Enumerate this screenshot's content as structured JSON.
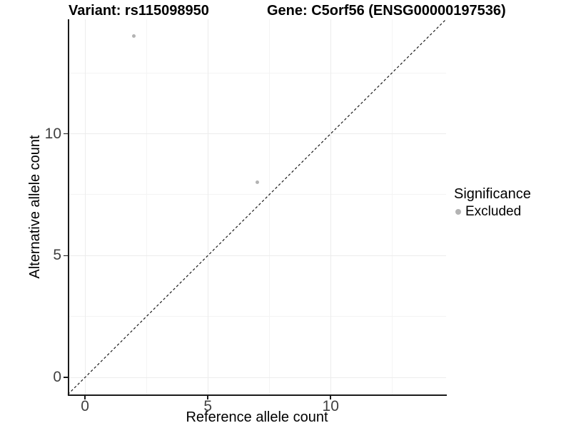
{
  "titles": {
    "variant": "Variant: rs115098950",
    "gene": "Gene: C5orf56 (ENSG00000197536)"
  },
  "legend": {
    "title": "Significance",
    "items": [
      {
        "label": "Excluded",
        "color": "#b3b3b3"
      }
    ]
  },
  "colors": {
    "background": "#ffffff",
    "grid_major": "#ececec",
    "grid_minor": "#f4f4f4",
    "axis_line": "#1a1a1a",
    "tick_text": "#404040",
    "title_text": "#000000",
    "point": "#b3b3b3",
    "reference_line": "#1a1a1a"
  },
  "chart_data": {
    "type": "scatter",
    "title_left": "Variant: rs115098950",
    "title_right": "Gene: C5orf56 (ENSG00000197536)",
    "xlabel": "Reference allele count",
    "ylabel": "Alternative allele count",
    "xlim": [
      -0.7,
      14.7
    ],
    "ylim": [
      -0.7,
      14.7
    ],
    "x_major_ticks": [
      0,
      5,
      10
    ],
    "y_major_ticks": [
      0,
      5,
      10
    ],
    "x_minor_ticks": [
      2.5,
      7.5,
      12.5
    ],
    "y_minor_ticks": [
      2.5,
      7.5,
      12.5
    ],
    "grid": "major and minor gridlines, white panel",
    "legend_position": "right-center",
    "series": [
      {
        "name": "Excluded",
        "color": "#b3b3b3",
        "points": [
          {
            "x": 2,
            "y": 14
          },
          {
            "x": 7,
            "y": 8
          }
        ]
      }
    ],
    "reference_line": {
      "type": "identity y=x",
      "style": "dashed",
      "color": "#1a1a1a"
    }
  }
}
